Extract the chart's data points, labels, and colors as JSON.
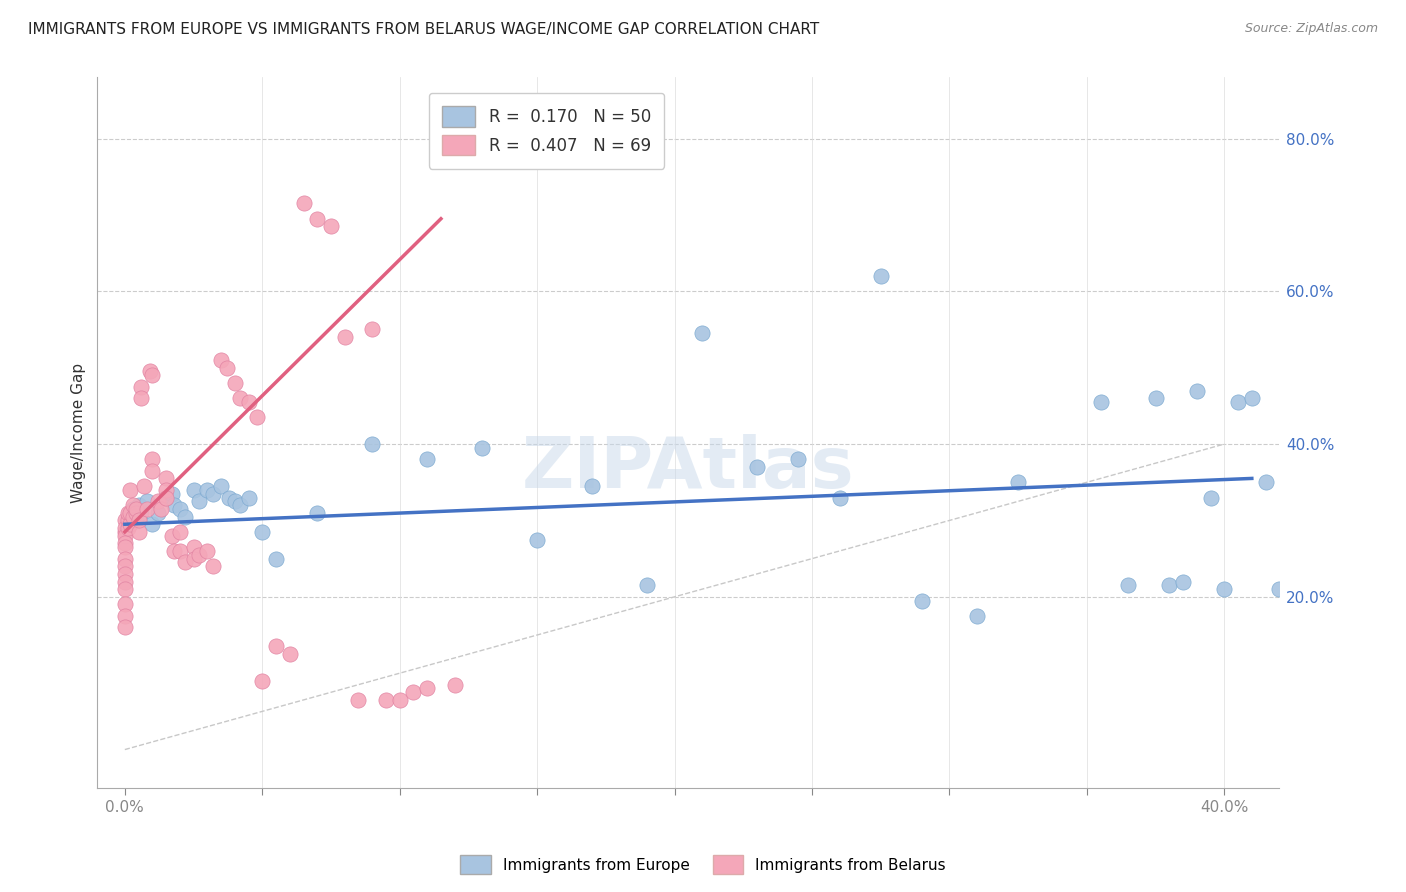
{
  "title": "IMMIGRANTS FROM EUROPE VS IMMIGRANTS FROM BELARUS WAGE/INCOME GAP CORRELATION CHART",
  "source": "Source: ZipAtlas.com",
  "ylabel": "Wage/Income Gap",
  "ytick_vals": [
    0.2,
    0.4,
    0.6,
    0.8
  ],
  "ytick_labels": [
    "20.0%",
    "40.0%",
    "60.0%",
    "80.0%"
  ],
  "xtick_vals": [
    0.0,
    0.05,
    0.1,
    0.15,
    0.2,
    0.25,
    0.3,
    0.35,
    0.4
  ],
  "xlim": [
    -0.01,
    0.42
  ],
  "ylim": [
    -0.05,
    0.88
  ],
  "watermark": "ZIPAtlas",
  "blue_R": "0.170",
  "blue_N": "50",
  "pink_R": "0.407",
  "pink_N": "69",
  "blue_color": "#a8c4e0",
  "pink_color": "#f4a7b9",
  "blue_line_color": "#4472c4",
  "pink_line_color": "#e06080",
  "diag_line_color": "#c8c8c8",
  "blue_x": [
    0.003,
    0.004,
    0.005,
    0.006,
    0.008,
    0.01,
    0.012,
    0.015,
    0.017,
    0.018,
    0.02,
    0.022,
    0.025,
    0.027,
    0.03,
    0.032,
    0.035,
    0.038,
    0.04,
    0.042,
    0.045,
    0.05,
    0.055,
    0.07,
    0.09,
    0.11,
    0.13,
    0.15,
    0.17,
    0.19,
    0.21,
    0.23,
    0.245,
    0.26,
    0.275,
    0.29,
    0.31,
    0.325,
    0.355,
    0.365,
    0.375,
    0.38,
    0.385,
    0.39,
    0.395,
    0.4,
    0.405,
    0.41,
    0.415,
    0.42
  ],
  "blue_y": [
    0.315,
    0.3,
    0.32,
    0.31,
    0.325,
    0.295,
    0.31,
    0.33,
    0.335,
    0.32,
    0.315,
    0.305,
    0.34,
    0.325,
    0.34,
    0.335,
    0.345,
    0.33,
    0.325,
    0.32,
    0.33,
    0.285,
    0.25,
    0.31,
    0.4,
    0.38,
    0.395,
    0.275,
    0.345,
    0.215,
    0.545,
    0.37,
    0.38,
    0.33,
    0.62,
    0.195,
    0.175,
    0.35,
    0.455,
    0.215,
    0.46,
    0.215,
    0.22,
    0.47,
    0.33,
    0.21,
    0.455,
    0.46,
    0.35,
    0.21
  ],
  "pink_x": [
    0.0,
    0.0,
    0.0,
    0.0,
    0.0,
    0.0,
    0.0,
    0.0,
    0.0,
    0.0,
    0.0,
    0.0,
    0.0,
    0.0,
    0.001,
    0.001,
    0.001,
    0.002,
    0.002,
    0.002,
    0.003,
    0.003,
    0.004,
    0.004,
    0.005,
    0.005,
    0.006,
    0.006,
    0.007,
    0.008,
    0.009,
    0.01,
    0.01,
    0.01,
    0.012,
    0.013,
    0.015,
    0.015,
    0.015,
    0.017,
    0.018,
    0.02,
    0.02,
    0.022,
    0.025,
    0.025,
    0.027,
    0.03,
    0.032,
    0.035,
    0.037,
    0.04,
    0.042,
    0.045,
    0.048,
    0.05,
    0.055,
    0.06,
    0.065,
    0.07,
    0.075,
    0.08,
    0.085,
    0.09,
    0.095,
    0.1,
    0.105,
    0.11,
    0.12
  ],
  "pink_y": [
    0.3,
    0.285,
    0.29,
    0.28,
    0.27,
    0.265,
    0.25,
    0.24,
    0.23,
    0.22,
    0.21,
    0.19,
    0.175,
    0.16,
    0.3,
    0.29,
    0.31,
    0.295,
    0.31,
    0.34,
    0.32,
    0.305,
    0.31,
    0.315,
    0.285,
    0.3,
    0.475,
    0.46,
    0.345,
    0.315,
    0.495,
    0.49,
    0.38,
    0.365,
    0.325,
    0.315,
    0.355,
    0.34,
    0.33,
    0.28,
    0.26,
    0.285,
    0.26,
    0.245,
    0.265,
    0.25,
    0.255,
    0.26,
    0.24,
    0.51,
    0.5,
    0.48,
    0.46,
    0.455,
    0.435,
    0.09,
    0.135,
    0.125,
    0.715,
    0.695,
    0.685,
    0.54,
    0.065,
    0.55,
    0.065,
    0.065,
    0.075,
    0.08,
    0.085
  ],
  "blue_trend_x": [
    0.0,
    0.41
  ],
  "blue_trend_y": [
    0.295,
    0.355
  ],
  "pink_trend_x": [
    0.0,
    0.115
  ],
  "pink_trend_y": [
    0.285,
    0.695
  ],
  "diag_trend_x": [
    0.0,
    0.4
  ],
  "diag_trend_y": [
    0.0,
    0.4
  ]
}
